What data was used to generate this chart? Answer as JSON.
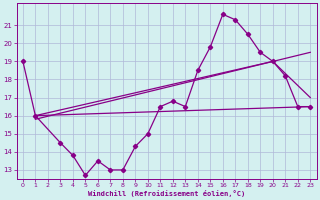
{
  "xlabel": "Windchill (Refroidissement éolien,°C)",
  "background_color": "#d4f0f0",
  "grid_color": "#b0b8d8",
  "line_color": "#880088",
  "xlim": [
    -0.5,
    23.5
  ],
  "ylim": [
    12.5,
    22.2
  ],
  "yticks": [
    13,
    14,
    15,
    16,
    17,
    18,
    19,
    20,
    21
  ],
  "xticks": [
    0,
    1,
    2,
    3,
    4,
    5,
    6,
    7,
    8,
    9,
    10,
    11,
    12,
    13,
    14,
    15,
    16,
    17,
    18,
    19,
    20,
    21,
    22,
    23
  ],
  "zigzag_x": [
    0,
    1,
    3,
    4,
    5,
    6,
    7,
    8,
    9,
    10,
    11,
    12,
    13,
    14,
    15,
    16,
    17,
    18,
    19,
    20,
    21,
    22,
    23
  ],
  "zigzag_y": [
    19.0,
    16.0,
    14.5,
    13.8,
    12.7,
    13.5,
    13.0,
    13.0,
    14.3,
    15.0,
    16.5,
    16.8,
    16.5,
    18.5,
    19.8,
    21.6,
    21.3,
    20.5,
    19.5,
    19.0,
    18.2,
    16.5,
    16.5
  ],
  "trend1_x": [
    1,
    23
  ],
  "trend1_y": [
    16.0,
    16.5
  ],
  "trend2_x": [
    1,
    23
  ],
  "trend2_y": [
    15.8,
    19.5
  ],
  "trend3_x": [
    1,
    20,
    23
  ],
  "trend3_y": [
    16.0,
    19.0,
    17.0
  ],
  "marker": "D",
  "marker_size": 2.2,
  "line_width": 0.9
}
